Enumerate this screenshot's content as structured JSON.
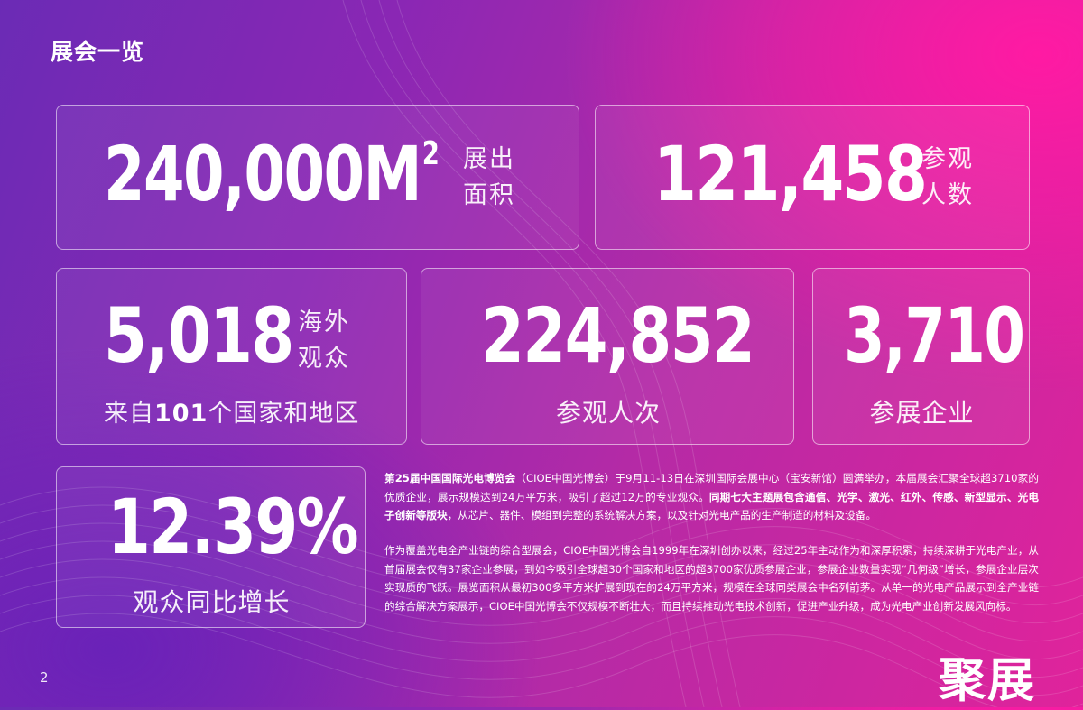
{
  "page": {
    "title": "展会一览",
    "page_number": "2",
    "logo_text": "聚展"
  },
  "stats": {
    "area": {
      "value": "240,000M",
      "sup": "2",
      "label_line1": "展出",
      "label_line2": "面积"
    },
    "visitors": {
      "value": "121,458",
      "label_line1": "参观",
      "label_line2": "人数"
    },
    "overseas": {
      "value": "5,018",
      "label_line1": "海外",
      "label_line2": "观众",
      "caption_prefix": "来自",
      "caption_num": "101",
      "caption_suffix": "个国家和地区"
    },
    "visits": {
      "value": "224,852",
      "caption": "参观人次"
    },
    "exhibitors": {
      "value": "3,710",
      "caption": "参展企业"
    },
    "growth": {
      "value": "12.39%",
      "caption": "观众同比增长"
    }
  },
  "description": {
    "p1_bold_a": "第25届中国国际光电博览会",
    "p1_text_a": "（CIOE中国光博会）于9月11-13日在深圳国际会展中心（宝安新馆）圆满举办，本届展会汇聚全球超3710家的优质企业，展示规模达到24万平方米，吸引了超过12万的专业观众。",
    "p1_bold_b": "同期七大主题展包含通信、光学、激光、红外、传感、新型显示、光电子创新等版块",
    "p1_text_b": "，从芯片、器件、模组到完整的系统解决方案，以及针对光电产品的生产制造的材料及设备。",
    "p2": "作为覆盖光电全产业链的综合型展会，CIOE中国光博会自1999年在深圳创办以来，经过25年主动作为和深厚积累，持续深耕于光电产业，从首届展会仅有37家企业参展，到如今吸引全球超30个国家和地区的超3700家优质参展企业，参展企业数量实现“几何级”增长，参展企业层次实现质的飞跃。展览面积从最初300多平方米扩展到现在的24万平方米，规模在全球同类展会中名列前茅。从单一的光电产品展示到全产业链的综合解决方案展示，CIOE中国光博会不仅规模不断壮大，而且持续推动光电技术创新，促进产业升级，成为光电产业创新发展风向标。"
  }
}
